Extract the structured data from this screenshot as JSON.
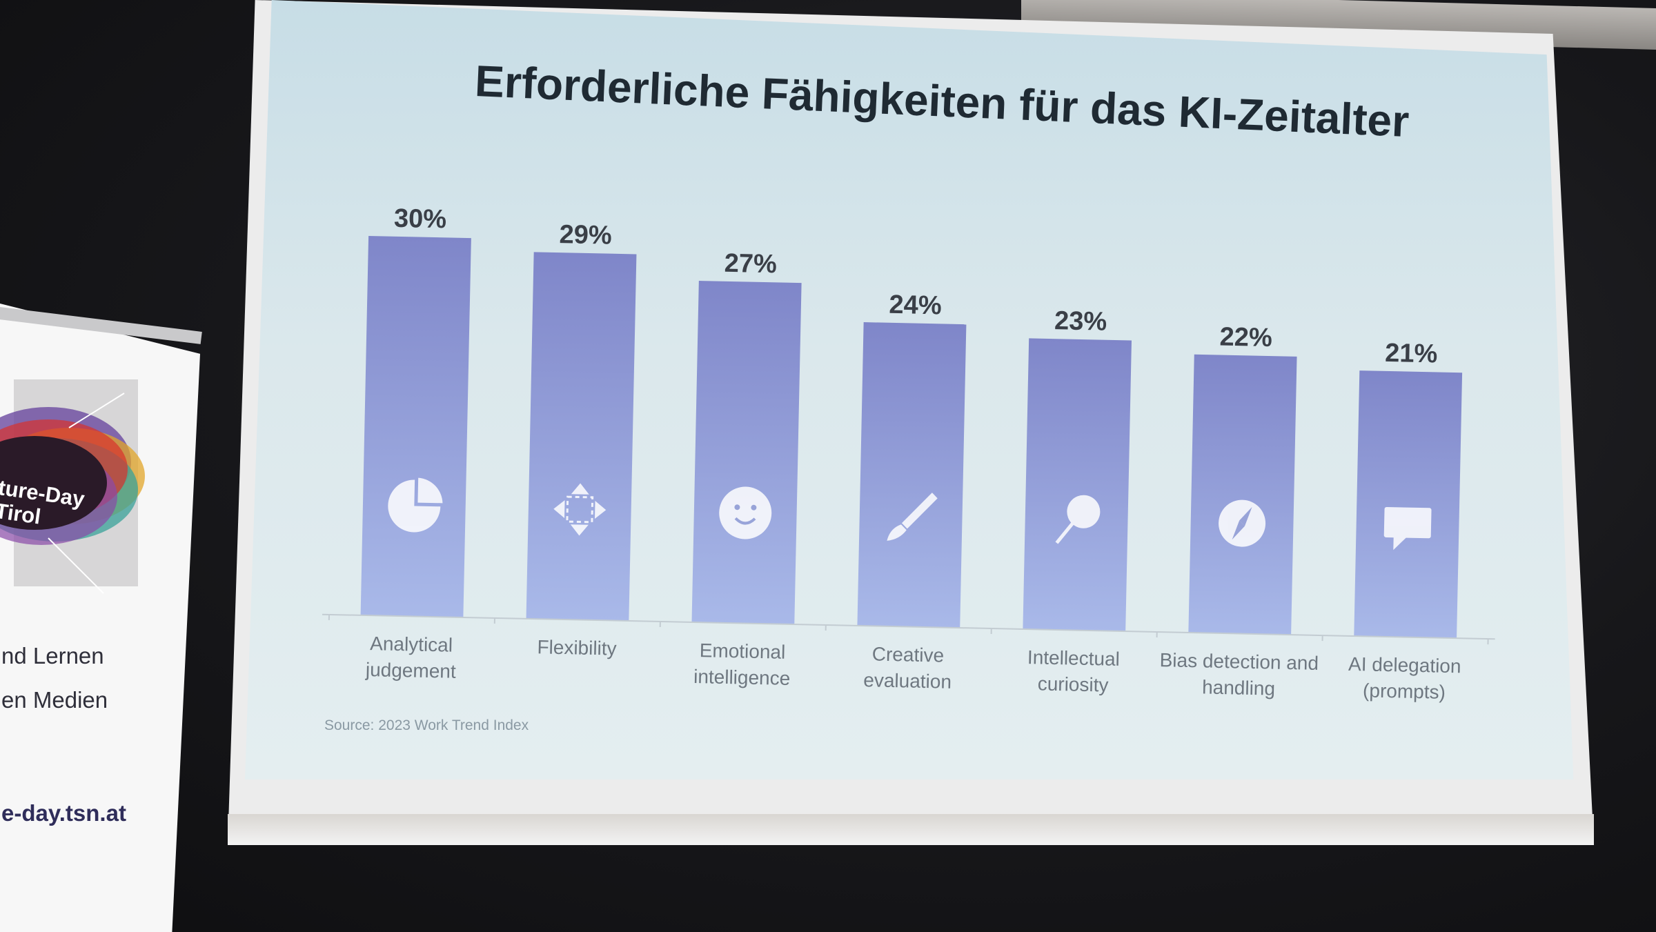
{
  "slide": {
    "title": "Erforderliche Fähigkeiten für das KI-Zeitalter",
    "source": "Source: 2023 Work Trend Index"
  },
  "banner": {
    "logo_text_line1": "ture-Day",
    "logo_text_line2": "Tirol",
    "line1": "nd Lernen",
    "line2": "en Medien",
    "url": "e-day.tsn.at"
  },
  "colors": {
    "bar_top": "#7f86c9",
    "bar_bottom": "#a9b9e9",
    "title": "#1f2a33",
    "value_label": "#3a3f47",
    "category_label": "#6e7780"
  },
  "chart_data": {
    "type": "bar",
    "title": "Erforderliche Fähigkeiten für das KI-Zeitalter",
    "categories": [
      [
        "Analytical",
        "judgement"
      ],
      [
        "Flexibility"
      ],
      [
        "Emotional",
        "intelligence"
      ],
      [
        "Creative",
        "evaluation"
      ],
      [
        "Intellectual",
        "curiosity"
      ],
      [
        "Bias detection and",
        "handling"
      ],
      [
        "AI delegation",
        "(prompts)"
      ]
    ],
    "values": [
      30,
      29,
      27,
      24,
      23,
      22,
      21
    ],
    "value_labels": [
      "30%",
      "29%",
      "27%",
      "24%",
      "23%",
      "22%",
      "21%"
    ],
    "icons": [
      "pie-chart-icon",
      "move-arrows-icon",
      "smiley-icon",
      "paintbrush-icon",
      "pin-icon",
      "compass-icon",
      "speech-bubble-icon"
    ],
    "ylim": [
      0,
      30
    ],
    "grid": false,
    "legend": "none"
  }
}
